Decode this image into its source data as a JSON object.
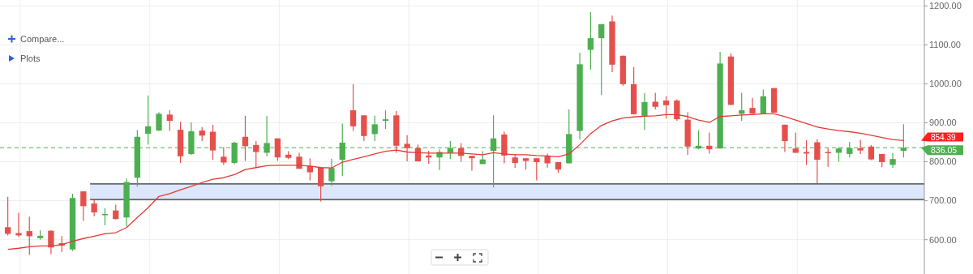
{
  "chart_data": {
    "type": "candlestick",
    "categories": [
      null,
      null,
      null,
      null,
      null,
      null,
      null,
      null,
      null,
      null,
      null,
      null,
      null,
      null,
      null,
      null,
      null,
      null,
      null,
      null,
      null,
      null,
      null,
      null,
      null,
      null,
      null,
      null,
      null,
      null,
      null,
      null,
      null,
      null,
      null,
      null,
      null,
      null,
      null,
      null,
      null,
      null,
      null,
      null,
      null,
      null,
      null,
      null,
      null,
      null,
      null,
      null,
      null,
      null,
      null,
      null,
      null,
      null,
      null,
      null,
      null,
      null,
      null,
      null,
      null,
      null,
      null,
      null,
      null,
      null,
      null,
      null,
      null,
      null,
      null,
      null,
      null,
      null,
      null,
      null,
      null,
      null,
      null,
      null
    ],
    "ohlc": [
      [
        632,
        710,
        611,
        615
      ],
      [
        617,
        669,
        607,
        611
      ],
      [
        622,
        659,
        561,
        609
      ],
      [
        604,
        624,
        600,
        610
      ],
      [
        623,
        624,
        563,
        580
      ],
      [
        591,
        609,
        568,
        585
      ],
      [
        575,
        718,
        571,
        707
      ],
      [
        724,
        724,
        648,
        686
      ],
      [
        693,
        702,
        660,
        670
      ],
      [
        663,
        681,
        637,
        666
      ],
      [
        675,
        690,
        652,
        653
      ],
      [
        657,
        757,
        634,
        748
      ],
      [
        759,
        881,
        736,
        864
      ],
      [
        872,
        970,
        844,
        891
      ],
      [
        880,
        927,
        879,
        923
      ],
      [
        921,
        932,
        879,
        905
      ],
      [
        882,
        903,
        797,
        814
      ],
      [
        820,
        901,
        818,
        878
      ],
      [
        880,
        889,
        853,
        867
      ],
      [
        877,
        895,
        805,
        829
      ],
      [
        813,
        837,
        792,
        798
      ],
      [
        797,
        851,
        794,
        849
      ],
      [
        864,
        918,
        802,
        840
      ],
      [
        843,
        853,
        786,
        825
      ],
      [
        823,
        917,
        814,
        848
      ],
      [
        860,
        860,
        802,
        811
      ],
      [
        818,
        827,
        807,
        810
      ],
      [
        813,
        823,
        782,
        782
      ],
      [
        789,
        809,
        752,
        773
      ],
      [
        785,
        785,
        698,
        737
      ],
      [
        750,
        808,
        738,
        784
      ],
      [
        805,
        898,
        763,
        849
      ],
      [
        932,
        999,
        879,
        891
      ],
      [
        919,
        919,
        853,
        866
      ],
      [
        871,
        918,
        853,
        896
      ],
      [
        905,
        932,
        884,
        909
      ],
      [
        919,
        930,
        823,
        841
      ],
      [
        846,
        868,
        801,
        835
      ],
      [
        835,
        844,
        801,
        801
      ],
      [
        816,
        828,
        795,
        811
      ],
      [
        811,
        832,
        779,
        825
      ],
      [
        823,
        853,
        807,
        835
      ],
      [
        835,
        848,
        800,
        815
      ],
      [
        815,
        815,
        777,
        809
      ],
      [
        794,
        827,
        794,
        806
      ],
      [
        828,
        919,
        734,
        860
      ],
      [
        870,
        877,
        796,
        816
      ],
      [
        811,
        820,
        784,
        797
      ],
      [
        809,
        809,
        780,
        802
      ],
      [
        809,
        809,
        752,
        799
      ],
      [
        814,
        821,
        785,
        796
      ],
      [
        799,
        799,
        771,
        780
      ],
      [
        796,
        934,
        796,
        871
      ],
      [
        879,
        1080,
        858,
        1050
      ],
      [
        1087,
        1184,
        1036,
        1117
      ],
      [
        1117,
        1153,
        971,
        1153
      ],
      [
        1160,
        1175,
        1030,
        1049
      ],
      [
        1072,
        1072,
        995,
        999
      ],
      [
        999,
        1043,
        921,
        922
      ],
      [
        916,
        976,
        881,
        953
      ],
      [
        954,
        977,
        934,
        941
      ],
      [
        957,
        968,
        911,
        945
      ],
      [
        957,
        960,
        905,
        909
      ],
      [
        908,
        927,
        818,
        839
      ],
      [
        834,
        881,
        832,
        841
      ],
      [
        841,
        875,
        821,
        832
      ],
      [
        834,
        1082,
        834,
        1052
      ],
      [
        1070,
        1078,
        945,
        946
      ],
      [
        923,
        977,
        905,
        932
      ],
      [
        938,
        964,
        923,
        923
      ],
      [
        924,
        985,
        924,
        968
      ],
      [
        989,
        989,
        926,
        926
      ],
      [
        895,
        895,
        825,
        853
      ],
      [
        834,
        875,
        823,
        823
      ],
      [
        825,
        855,
        792,
        821
      ],
      [
        850,
        858,
        745,
        805
      ],
      [
        825,
        835,
        787,
        823
      ],
      [
        823,
        837,
        800,
        834
      ],
      [
        820,
        851,
        811,
        835
      ],
      [
        835,
        856,
        820,
        829
      ],
      [
        839,
        843,
        804,
        806
      ],
      [
        820,
        820,
        786,
        799
      ],
      [
        792,
        823,
        784,
        807
      ],
      [
        828,
        896,
        811,
        836.05
      ]
    ],
    "colors": [
      "#e5504d",
      "#e5504d",
      "#e5504d",
      "#4caf50",
      "#e5504d",
      "#e5504d",
      "#4caf50",
      "#e5504d",
      "#e5504d",
      "#4caf50",
      "#e5504d",
      "#4caf50",
      "#4caf50",
      "#4caf50",
      "#4caf50",
      "#e5504d",
      "#e5504d",
      "#4caf50",
      "#e5504d",
      "#e5504d",
      "#e5504d",
      "#4caf50",
      "#e5504d",
      "#e5504d",
      "#4caf50",
      "#e5504d",
      "#e5504d",
      "#e5504d",
      "#e5504d",
      "#e5504d",
      "#4caf50",
      "#4caf50",
      "#e5504d",
      "#e5504d",
      "#4caf50",
      "#4caf50",
      "#e5504d",
      "#e5504d",
      "#e5504d",
      "#e5504d",
      "#4caf50",
      "#4caf50",
      "#e5504d",
      "#e5504d",
      "#4caf50",
      "#4caf50",
      "#e5504d",
      "#e5504d",
      "#e5504d",
      "#e5504d",
      "#e5504d",
      "#e5504d",
      "#4caf50",
      "#4caf50",
      "#4caf50",
      "#4caf50",
      "#e5504d",
      "#e5504d",
      "#e5504d",
      "#4caf50",
      "#e5504d",
      "#e5504d",
      "#e5504d",
      "#e5504d",
      "#4caf50",
      "#e5504d",
      "#4caf50",
      "#e5504d",
      "#4caf50",
      "#e5504d",
      "#4caf50",
      "#e5504d",
      "#e5504d",
      "#e5504d",
      "#e5504d",
      "#e5504d",
      "#e5504d",
      "#4caf50",
      "#4caf50",
      "#e5504d",
      "#e5504d",
      "#e5504d",
      "#4caf50",
      "#4caf50"
    ],
    "series": [
      {
        "type": "line",
        "color": "#e53935",
        "values": [
          575,
          578,
          582,
          584,
          584,
          587,
          596,
          603,
          609,
          615,
          618,
          631,
          657,
          682,
          711,
          718,
          728,
          737,
          747,
          755,
          759,
          767,
          780,
          785,
          790,
          791,
          791,
          791,
          789,
          785,
          784,
          799,
          806,
          813,
          820,
          827,
          830,
          825,
          823,
          822,
          822,
          822,
          822,
          820,
          818,
          823,
          820,
          818,
          818,
          816,
          815,
          813,
          820,
          844,
          872,
          893,
          905,
          912,
          915,
          917,
          918,
          921,
          921,
          916,
          907,
          901,
          916,
          918,
          920,
          921,
          923,
          923,
          916,
          907,
          898,
          889,
          884,
          880,
          877,
          873,
          868,
          862,
          857,
          854.39
        ]
      }
    ],
    "ylim": [
      512,
      1215
    ],
    "yticks": [
      {
        "value": 600,
        "label": "600.00"
      },
      {
        "value": 700,
        "label": "700.00"
      },
      {
        "value": 800,
        "label": "800.00"
      },
      {
        "value": 900,
        "label": "900.00"
      },
      {
        "value": 1000,
        "label": "1000.00"
      },
      {
        "value": 1100,
        "label": "1100.00"
      },
      {
        "value": 1200,
        "label": "1200.00"
      }
    ],
    "grid": true,
    "ref_lines": [
      {
        "axis": "y",
        "value": 836.05,
        "label": "836.05",
        "color": "#4caf50",
        "line_style": "dashed"
      },
      {
        "axis": "y",
        "value": 743,
        "color": "#333333",
        "line_style": "solid"
      },
      {
        "axis": "y",
        "value": 703,
        "color": "#333333",
        "line_style": "solid"
      }
    ],
    "bands": [
      {
        "axis": "y",
        "from": 703,
        "to": 743,
        "color": "#dde7fb"
      }
    ],
    "annotations": [
      "Compare...",
      "Plots",
      "854.39"
    ]
  }
}
